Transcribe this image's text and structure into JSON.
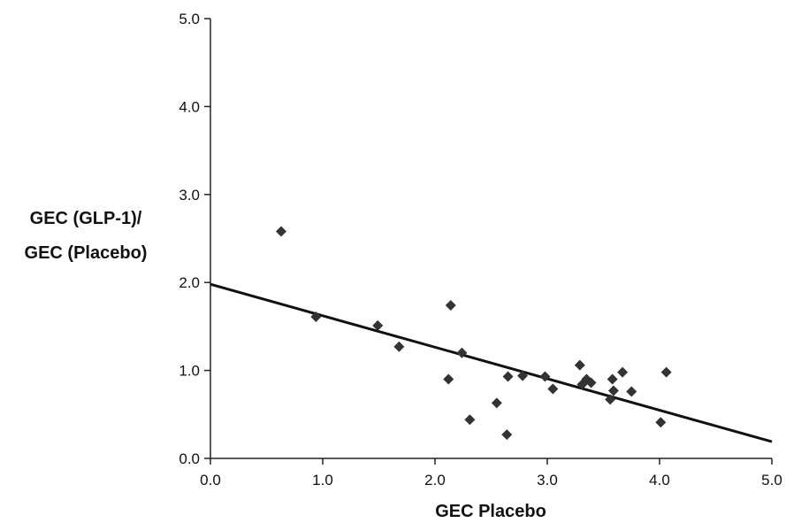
{
  "chart_data": {
    "type": "scatter",
    "title": "",
    "xlabel": "GEC Placebo",
    "ylabel_lines": [
      "GEC (GLP-1)/",
      "GEC (Placebo)"
    ],
    "xlim": [
      0,
      5
    ],
    "ylim": [
      0,
      5
    ],
    "x_ticks": [
      "0.0",
      "1.0",
      "2.0",
      "3.0",
      "4.0",
      "5.0"
    ],
    "y_ticks": [
      "0.0",
      "1.0",
      "2.0",
      "3.0",
      "4.0",
      "5.0"
    ],
    "grid": false,
    "legend": "none",
    "marker": "diamond",
    "marker_color": "#333333",
    "points": [
      {
        "x": 0.63,
        "y": 2.58
      },
      {
        "x": 0.94,
        "y": 1.61
      },
      {
        "x": 1.49,
        "y": 1.51
      },
      {
        "x": 1.68,
        "y": 1.27
      },
      {
        "x": 2.12,
        "y": 0.9
      },
      {
        "x": 2.14,
        "y": 1.74
      },
      {
        "x": 2.24,
        "y": 1.2
      },
      {
        "x": 2.31,
        "y": 0.44
      },
      {
        "x": 2.55,
        "y": 0.63
      },
      {
        "x": 2.64,
        "y": 0.27
      },
      {
        "x": 2.65,
        "y": 0.93
      },
      {
        "x": 2.78,
        "y": 0.94
      },
      {
        "x": 2.98,
        "y": 0.93
      },
      {
        "x": 3.05,
        "y": 0.79
      },
      {
        "x": 3.29,
        "y": 1.06
      },
      {
        "x": 3.31,
        "y": 0.84
      },
      {
        "x": 3.35,
        "y": 0.9
      },
      {
        "x": 3.39,
        "y": 0.86
      },
      {
        "x": 3.56,
        "y": 0.67
      },
      {
        "x": 3.58,
        "y": 0.9
      },
      {
        "x": 3.59,
        "y": 0.77
      },
      {
        "x": 3.67,
        "y": 0.98
      },
      {
        "x": 3.75,
        "y": 0.76
      },
      {
        "x": 4.01,
        "y": 0.41
      },
      {
        "x": 4.06,
        "y": 0.98
      }
    ],
    "trendline": {
      "x": [
        0,
        5
      ],
      "y": [
        1.98,
        0.19
      ]
    }
  }
}
